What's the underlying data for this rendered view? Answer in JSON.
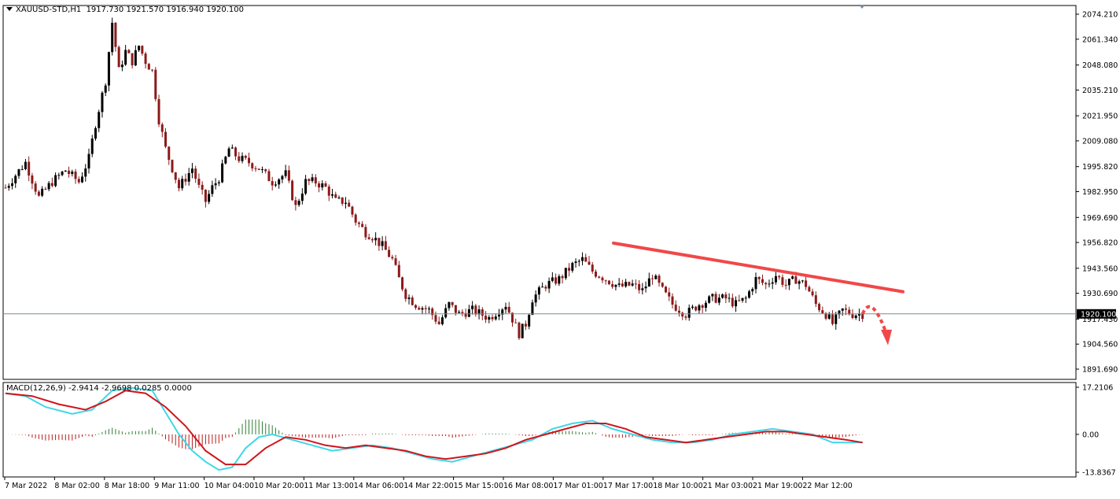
{
  "header": {
    "symbol": "XAUUSD-STD,H1",
    "ohlc": "1917.730 1921.570 1916.940 1920.100"
  },
  "macd": {
    "label": "MACD(12,26,9) -2.9414 -2.9698 0.0285 0.0000"
  },
  "current_price_label": "1920.100",
  "colors": {
    "bull_candle": "#000000",
    "bear_candle": "#8B1A1A",
    "trendline": "#F04848",
    "macd_line": "#3FD7E8",
    "signal_line": "#D0141B",
    "hist_pos": "#2E7D32",
    "hist_neg": "#B71C1C",
    "price_line": "#7A8A94"
  },
  "chart_data": [
    {
      "type": "candlestick",
      "title": "XAUUSD-STD,H1",
      "y_ticks": [
        "2074.210",
        "2061.340",
        "2048.080",
        "2035.210",
        "2021.950",
        "2009.080",
        "1995.820",
        "1982.950",
        "1969.690",
        "1956.820",
        "1943.560",
        "1930.690",
        "1917.430",
        "1904.560",
        "1891.690"
      ],
      "ylim": [
        1891.69,
        2074.21
      ],
      "x_ticks": [
        "7 Mar 2022",
        "8 Mar 02:00",
        "8 Mar 18:00",
        "9 Mar 11:00",
        "10 Mar 04:00",
        "10 Mar 20:00",
        "11 Mar 13:00",
        "14 Mar 06:00",
        "14 Mar 22:00",
        "15 Mar 15:00",
        "16 Mar 08:00",
        "17 Mar 01:00",
        "17 Mar 17:00",
        "18 Mar 10:00",
        "21 Mar 03:00",
        "21 Mar 19:00",
        "22 Mar 12:00"
      ],
      "price_path": [
        [
          0,
          1985
        ],
        [
          6,
          1998
        ],
        [
          10,
          1980
        ],
        [
          14,
          1988
        ],
        [
          18,
          1994
        ],
        [
          22,
          1988
        ],
        [
          25,
          2000
        ],
        [
          27,
          2018
        ],
        [
          30,
          2040
        ],
        [
          32,
          2070
        ],
        [
          34,
          2045
        ],
        [
          36,
          2055
        ],
        [
          38,
          2050
        ],
        [
          40,
          2058
        ],
        [
          42,
          2050
        ],
        [
          44,
          2045
        ],
        [
          46,
          2020
        ],
        [
          48,
          2005
        ],
        [
          50,
          1995
        ],
        [
          52,
          1985
        ],
        [
          56,
          1995
        ],
        [
          58,
          1985
        ],
        [
          60,
          1978
        ],
        [
          62,
          1985
        ],
        [
          64,
          1990
        ],
        [
          67,
          2005
        ],
        [
          70,
          2000
        ],
        [
          73,
          1998
        ],
        [
          76,
          1995
        ],
        [
          80,
          1988
        ],
        [
          84,
          1992
        ],
        [
          87,
          1975
        ],
        [
          90,
          1988
        ],
        [
          93,
          1988
        ],
        [
          96,
          1985
        ],
        [
          99,
          1978
        ],
        [
          102,
          1978
        ],
        [
          105,
          1968
        ],
        [
          108,
          1962
        ],
        [
          110,
          1960
        ],
        [
          113,
          1955
        ],
        [
          116,
          1948
        ],
        [
          118,
          1938
        ],
        [
          120,
          1930
        ],
        [
          123,
          1925
        ],
        [
          127,
          1922
        ],
        [
          130,
          1915
        ],
        [
          133,
          1925
        ],
        [
          136,
          1920
        ],
        [
          140,
          1922
        ],
        [
          145,
          1918
        ],
        [
          150,
          1925
        ],
        [
          154,
          1910
        ],
        [
          156,
          1915
        ],
        [
          158,
          1928
        ],
        [
          162,
          1935
        ],
        [
          166,
          1938
        ],
        [
          170,
          1945
        ],
        [
          173,
          1948
        ],
        [
          176,
          1942
        ],
        [
          180,
          1938
        ],
        [
          184,
          1934
        ],
        [
          188,
          1935
        ],
        [
          191,
          1932
        ],
        [
          194,
          1940
        ],
        [
          197,
          1932
        ],
        [
          200,
          1925
        ],
        [
          204,
          1920
        ],
        [
          208,
          1925
        ],
        [
          212,
          1928
        ],
        [
          216,
          1928
        ],
        [
          219,
          1925
        ],
        [
          222,
          1928
        ],
        [
          225,
          1938
        ],
        [
          228,
          1935
        ],
        [
          231,
          1940
        ],
        [
          234,
          1935
        ],
        [
          237,
          1938
        ],
        [
          240,
          1935
        ],
        [
          243,
          1925
        ],
        [
          246,
          1920
        ],
        [
          248,
          1915
        ],
        [
          251,
          1922
        ],
        [
          254,
          1920
        ],
        [
          257,
          1920
        ]
      ],
      "trendline": [
        [
          1956.5,
          0.0
        ],
        [
          1931.5,
          1.0
        ]
      ],
      "current_price": 1920.1
    },
    {
      "type": "line",
      "title": "MACD(12,26,9)",
      "y_ticks": [
        "17.2106",
        "0.00",
        "-13.8367"
      ],
      "ylim": [
        -13.8367,
        17.2106
      ],
      "macd_path": [
        [
          0,
          15
        ],
        [
          6,
          14
        ],
        [
          12,
          10
        ],
        [
          20,
          7.5
        ],
        [
          26,
          9
        ],
        [
          32,
          16
        ],
        [
          38,
          17
        ],
        [
          44,
          16
        ],
        [
          48,
          8
        ],
        [
          52,
          0
        ],
        [
          56,
          -6
        ],
        [
          60,
          -10
        ],
        [
          64,
          -13
        ],
        [
          68,
          -12
        ],
        [
          72,
          -5
        ],
        [
          76,
          -1
        ],
        [
          80,
          0
        ],
        [
          86,
          -2
        ],
        [
          92,
          -4
        ],
        [
          98,
          -6
        ],
        [
          104,
          -5
        ],
        [
          110,
          -4
        ],
        [
          116,
          -5
        ],
        [
          122,
          -7
        ],
        [
          128,
          -9
        ],
        [
          134,
          -10
        ],
        [
          140,
          -8
        ],
        [
          146,
          -6
        ],
        [
          152,
          -4
        ],
        [
          158,
          -2
        ],
        [
          164,
          2
        ],
        [
          170,
          4
        ],
        [
          176,
          5
        ],
        [
          182,
          2
        ],
        [
          188,
          0
        ],
        [
          194,
          -2
        ],
        [
          200,
          -3
        ],
        [
          206,
          -3
        ],
        [
          212,
          -2
        ],
        [
          218,
          0
        ],
        [
          224,
          1
        ],
        [
          230,
          2
        ],
        [
          236,
          1
        ],
        [
          242,
          0
        ],
        [
          248,
          -3
        ],
        [
          254,
          -3
        ],
        [
          257,
          -2.9
        ]
      ],
      "signal_path": [
        [
          0,
          15
        ],
        [
          8,
          14
        ],
        [
          16,
          11
        ],
        [
          24,
          9
        ],
        [
          30,
          12
        ],
        [
          36,
          16
        ],
        [
          42,
          15
        ],
        [
          48,
          10
        ],
        [
          54,
          3
        ],
        [
          60,
          -6
        ],
        [
          66,
          -11
        ],
        [
          72,
          -11
        ],
        [
          78,
          -5
        ],
        [
          84,
          -1
        ],
        [
          90,
          -2
        ],
        [
          96,
          -4
        ],
        [
          102,
          -5
        ],
        [
          108,
          -4
        ],
        [
          114,
          -5
        ],
        [
          120,
          -6
        ],
        [
          126,
          -8
        ],
        [
          132,
          -9
        ],
        [
          138,
          -8
        ],
        [
          144,
          -7
        ],
        [
          150,
          -5
        ],
        [
          156,
          -2
        ],
        [
          162,
          0
        ],
        [
          168,
          2
        ],
        [
          174,
          4
        ],
        [
          180,
          4
        ],
        [
          186,
          2
        ],
        [
          192,
          -1
        ],
        [
          198,
          -2
        ],
        [
          204,
          -3
        ],
        [
          210,
          -2
        ],
        [
          216,
          -1
        ],
        [
          222,
          0
        ],
        [
          228,
          1
        ],
        [
          234,
          1
        ],
        [
          240,
          0
        ],
        [
          246,
          -1
        ],
        [
          252,
          -2
        ],
        [
          257,
          -3
        ]
      ]
    }
  ]
}
